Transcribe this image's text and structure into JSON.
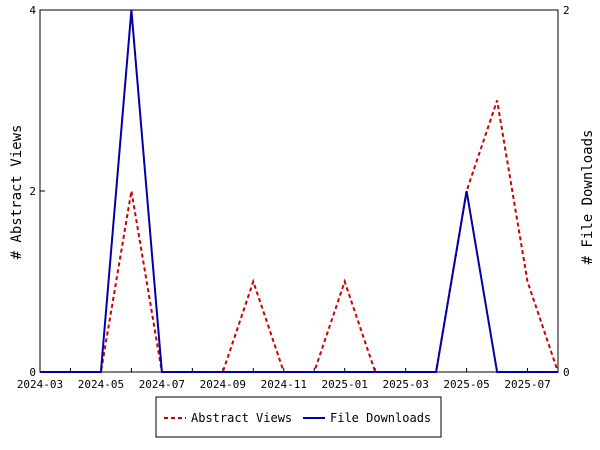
{
  "chart_data": {
    "type": "line",
    "x": [
      "2024-03",
      "2024-04",
      "2024-05",
      "2024-06",
      "2024-07",
      "2024-08",
      "2024-09",
      "2024-10",
      "2024-11",
      "2024-12",
      "2025-01",
      "2025-02",
      "2025-03",
      "2025-04",
      "2025-05",
      "2025-06",
      "2025-07",
      "2025-08"
    ],
    "x_ticks": [
      "2024-03",
      "2024-05",
      "2024-07",
      "2024-09",
      "2024-11",
      "2025-01",
      "2025-03",
      "2025-05",
      "2025-07"
    ],
    "series": [
      {
        "name": "Abstract Views",
        "axis": "left",
        "color": "#cc0000",
        "style": "dashed",
        "values": [
          0,
          0,
          0,
          2,
          0,
          0,
          0,
          1,
          0,
          0,
          1,
          0,
          0,
          0,
          2,
          3,
          1,
          0
        ]
      },
      {
        "name": "File Downloads",
        "axis": "right",
        "color": "#0000aa",
        "style": "solid",
        "values": [
          0,
          0,
          0,
          2,
          0,
          0,
          0,
          0,
          0,
          0,
          0,
          0,
          0,
          0,
          1,
          0,
          0,
          0
        ]
      }
    ],
    "ylabel_left": "# Abstract Views",
    "ylabel_right": "# File Downloads",
    "ylim_left": [
      0,
      4
    ],
    "ylim_right": [
      0,
      2
    ],
    "yticks_left": [
      "0",
      "2",
      "4"
    ],
    "yticks_right": [
      "0",
      "2"
    ],
    "legend_placement": "bottom-center",
    "grid": false
  }
}
